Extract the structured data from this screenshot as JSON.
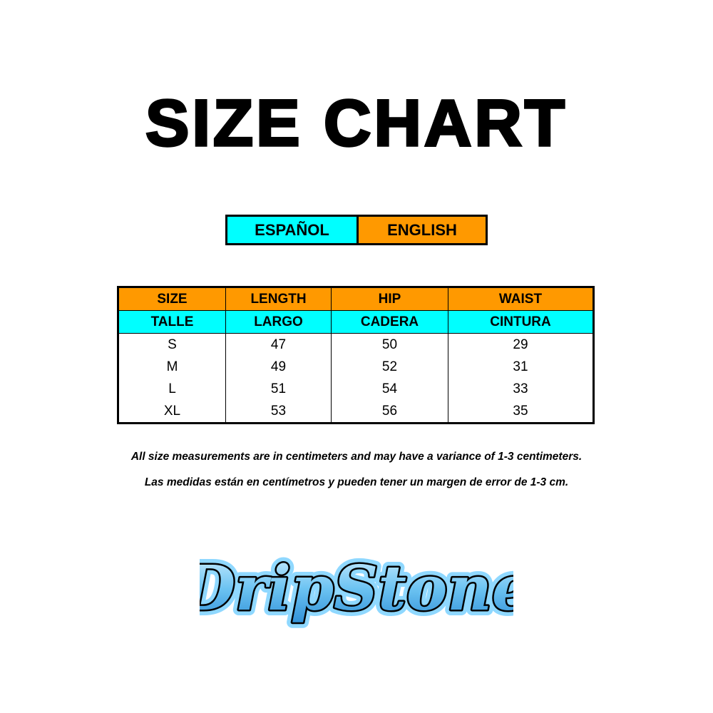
{
  "title": "SIZE CHART",
  "legend": {
    "spanish": "ESPAÑOL",
    "english": "ENGLISH",
    "spanish_color": "#00ffff",
    "english_color": "#ff9900"
  },
  "table": {
    "headers_en": [
      "SIZE",
      "LENGTH",
      "HIP",
      "WAIST"
    ],
    "headers_es": [
      "TALLE",
      "LARGO",
      "CADERA",
      "CINTURA"
    ],
    "rows": [
      [
        "S",
        "47",
        "50",
        "29"
      ],
      [
        "M",
        "49",
        "52",
        "31"
      ],
      [
        "L",
        "51",
        "54",
        "33"
      ],
      [
        "XL",
        "53",
        "56",
        "35"
      ]
    ]
  },
  "notes": {
    "english": "All size measurements are in centimeters and may have a variance of 1-3 centimeters.",
    "spanish": "Las medidas están en centímetros y pueden tener un margen de error de 1-3 cm."
  },
  "logo": {
    "text": "DripStone"
  }
}
